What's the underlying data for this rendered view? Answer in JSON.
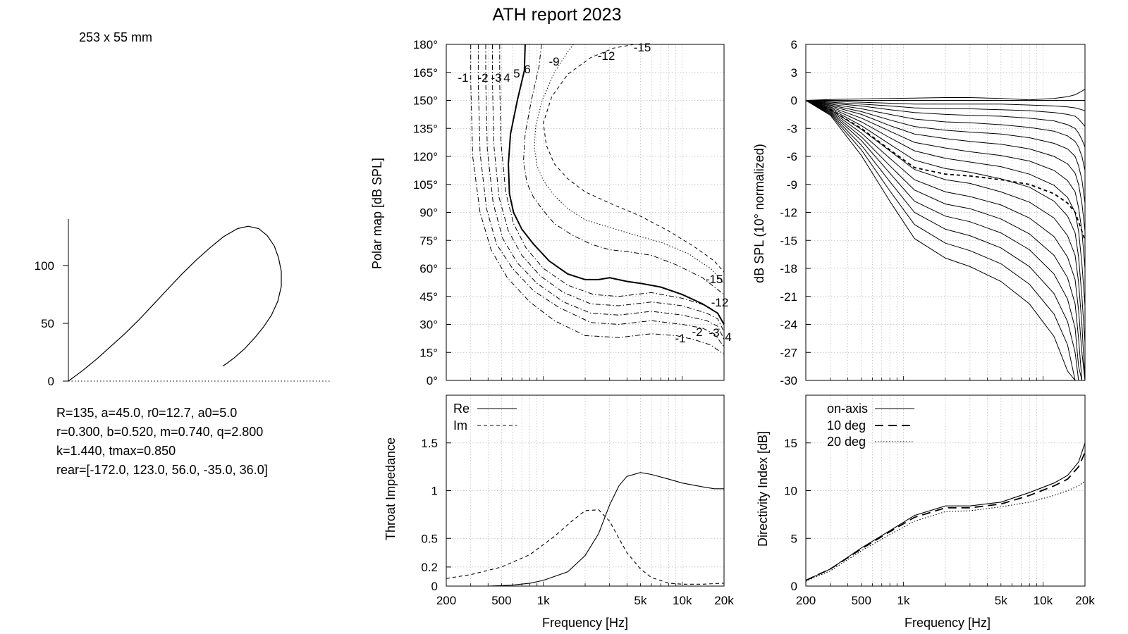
{
  "report": {
    "title": "ATH report 2023",
    "size_label": "253 x 55 mm",
    "params": [
      "R=135, a=45.0, r0=12.7, a0=5.0",
      "r=0.300, b=0.520, m=0.740, q=2.800",
      "k=1.440, tmax=0.850",
      "rear=[-172.0, 123.0, 56.0, -35.0, 36.0]"
    ]
  },
  "chart_data": [
    {
      "id": "profile",
      "type": "line",
      "title": "",
      "xlabel": "",
      "ylabel": "",
      "ylim": [
        0,
        135
      ],
      "y_ticks": [
        "0",
        "50",
        "100"
      ],
      "series": [
        {
          "x": [
            0,
            20,
            40,
            60,
            80,
            100,
            120,
            140,
            160,
            180,
            200,
            220,
            240,
            255,
            270,
            282,
            292,
            298,
            302,
            302,
            297,
            288,
            277,
            265,
            250,
            235,
            224,
            219
          ],
          "y": [
            0,
            9,
            19,
            30,
            41,
            53,
            66,
            79,
            92,
            104,
            115,
            125,
            132,
            134,
            132,
            126,
            117,
            107,
            95,
            82,
            69,
            57,
            47,
            38,
            28,
            20,
            15,
            13
          ]
        }
      ]
    },
    {
      "id": "polar-map",
      "type": "line",
      "xlabel": "",
      "ylabel": "Polar map [dB SPL]",
      "x_scale": "log",
      "xlim": [
        200,
        20000
      ],
      "ylim": [
        0,
        180
      ],
      "y_ticks": [
        "0°",
        "15°",
        "30°",
        "45°",
        "60°",
        "75°",
        "90°",
        "105°",
        "120°",
        "135°",
        "150°",
        "165°",
        "180°"
      ],
      "contours": [
        {
          "level": "-1",
          "style": "dashdot",
          "x": [
            300,
            300,
            310,
            350,
            420,
            550,
            800,
            1200,
            2000,
            3500,
            6000,
            9000,
            12000,
            16000,
            20000
          ],
          "y": [
            180,
            160,
            120,
            90,
            70,
            55,
            42,
            32,
            24,
            23,
            25,
            24,
            22,
            19,
            14
          ]
        },
        {
          "level": "-2",
          "style": "dashdot",
          "x": [
            340,
            340,
            350,
            390,
            460,
            600,
            850,
            1300,
            2200,
            3500,
            6000,
            10000,
            14000,
            17000,
            20000
          ],
          "y": [
            180,
            160,
            122,
            92,
            73,
            60,
            48,
            39,
            31,
            30,
            32,
            30,
            28,
            25,
            18
          ]
        },
        {
          "level": "-3",
          "style": "dashdot",
          "x": [
            385,
            385,
            395,
            435,
            510,
            650,
            900,
            1400,
            2200,
            3500,
            6000,
            10000,
            15000,
            18000,
            20000
          ],
          "y": [
            180,
            160,
            124,
            95,
            76,
            63,
            52,
            42,
            36,
            35,
            37,
            35,
            32,
            29,
            22
          ]
        },
        {
          "level": "4",
          "style": "dashdot",
          "x": [
            430,
            430,
            440,
            480,
            560,
            700,
            950,
            1400,
            2200,
            3500,
            6000,
            10000,
            15000,
            18000,
            20000
          ],
          "y": [
            180,
            160,
            126,
            98,
            80,
            67,
            56,
            47,
            41,
            40,
            42,
            40,
            36,
            33,
            26
          ]
        },
        {
          "level": "5",
          "style": "dashdot",
          "x": [
            485,
            485,
            495,
            535,
            610,
            750,
            1000,
            1500,
            2300,
            3500,
            6000,
            10000,
            15000,
            18000,
            20000
          ],
          "y": [
            180,
            160,
            128,
            101,
            84,
            71,
            60,
            51,
            46,
            45,
            47,
            44,
            40,
            36,
            30
          ]
        },
        {
          "level": "6",
          "style": "solid",
          "x": [
            740,
            730,
            650,
            580,
            560,
            570,
            610,
            700,
            850,
            1100,
            1500,
            2000,
            2500,
            3000,
            4000,
            5000,
            7000,
            10000,
            14000,
            18000,
            20000
          ],
          "y": [
            180,
            166,
            150,
            132,
            116,
            100,
            90,
            81,
            73,
            64,
            57,
            54,
            54,
            55,
            53,
            52,
            50,
            46,
            41,
            36,
            30
          ]
        },
        {
          "level": "-9",
          "style": "dashdot",
          "x": [
            970,
            930,
            820,
            740,
            720,
            760,
            850,
            1000,
            1200,
            1600,
            2200,
            3000,
            4000,
            6000,
            9000,
            14000,
            20000
          ],
          "y": [
            180,
            168,
            150,
            132,
            118,
            106,
            98,
            91,
            84,
            78,
            73,
            70,
            69,
            67,
            62,
            55,
            46
          ]
        },
        {
          "level": "-12",
          "style": "dotted",
          "x": [
            1650,
            1500,
            1200,
            980,
            880,
            860,
            900,
            1000,
            1200,
            1500,
            2000,
            3000,
            4500,
            7000,
            11000,
            16000,
            20000
          ],
          "y": [
            180,
            176,
            165,
            150,
            136,
            125,
            115,
            107,
            99,
            92,
            86,
            82,
            78,
            74,
            68,
            60,
            52
          ]
        },
        {
          "level": "-15",
          "style": "dashed",
          "x": [
            4500,
            3200,
            2200,
            1500,
            1150,
            1000,
            1050,
            1200,
            1500,
            2000,
            3000,
            5000,
            8000,
            12000,
            17000,
            20000
          ],
          "y": [
            180,
            178,
            173,
            164,
            152,
            138,
            126,
            116,
            108,
            101,
            95,
            88,
            80,
            72,
            64,
            58
          ]
        }
      ],
      "label_texts": [
        "-1",
        "-2",
        "-3",
        "4",
        "5",
        "6",
        "-9",
        "-12",
        "-15",
        "-15",
        "-12",
        "4",
        "-3",
        "-2",
        "-1"
      ]
    },
    {
      "id": "normalized-spl",
      "type": "line",
      "xlabel": "",
      "ylabel": "dB SPL (10° normalized)",
      "x_scale": "log",
      "xlim": [
        200,
        20000
      ],
      "ylim": [
        -30,
        6
      ],
      "y_ticks": [
        "-30",
        "-27",
        "-24",
        "-21",
        "-18",
        "-15",
        "-12",
        "-9",
        "-6",
        "-3",
        "0",
        "3",
        "6"
      ],
      "x": [
        200,
        300,
        500,
        800,
        1200,
        2000,
        3000,
        5000,
        8000,
        12000,
        15000,
        17000,
        18000,
        19000,
        20000
      ],
      "series": [
        {
          "name": "",
          "style": "solid",
          "values": [
            0,
            0.1,
            0.15,
            0.2,
            0.25,
            0.3,
            0.3,
            0.2,
            0.05,
            0.2,
            0.4,
            0.6,
            0.8,
            1.0,
            1.2
          ]
        },
        {
          "name": "",
          "style": "solid",
          "values": [
            0,
            0,
            0,
            0,
            0,
            0,
            0,
            0,
            0,
            0,
            0,
            0,
            0,
            0,
            0
          ]
        },
        {
          "name": "",
          "style": "solid",
          "values": [
            0,
            -0.1,
            -0.2,
            -0.3,
            -0.4,
            -0.4,
            -0.4,
            -0.4,
            -0.5,
            -0.6,
            -0.7,
            -0.8,
            -0.9,
            -1.0,
            -1.1
          ]
        },
        {
          "name": "",
          "style": "solid",
          "values": [
            0,
            -0.2,
            -0.4,
            -0.6,
            -0.8,
            -0.9,
            -0.9,
            -1.0,
            -1.1,
            -1.3,
            -1.5,
            -1.7,
            -2.0,
            -2.4,
            -2.8
          ]
        },
        {
          "name": "",
          "style": "solid",
          "values": [
            0,
            -0.3,
            -0.6,
            -1.0,
            -1.3,
            -1.5,
            -1.6,
            -1.7,
            -1.9,
            -2.2,
            -2.6,
            -3.0,
            -3.5,
            -4.2,
            -5.0
          ]
        },
        {
          "name": "",
          "style": "solid",
          "values": [
            0,
            -0.4,
            -0.9,
            -1.5,
            -2.0,
            -2.3,
            -2.4,
            -2.6,
            -2.9,
            -3.3,
            -3.8,
            -4.4,
            -5.0,
            -6.0,
            -7.5
          ]
        },
        {
          "name": "",
          "style": "solid",
          "values": [
            0,
            -0.5,
            -1.2,
            -2.1,
            -2.8,
            -3.2,
            -3.4,
            -3.6,
            -4.0,
            -4.6,
            -5.2,
            -6.0,
            -7.0,
            -8.5,
            -11.0
          ]
        },
        {
          "name": "",
          "style": "solid",
          "values": [
            0,
            -0.6,
            -1.5,
            -2.7,
            -3.6,
            -4.1,
            -4.4,
            -4.7,
            -5.2,
            -6.0,
            -6.8,
            -7.8,
            -9.0,
            -11.0,
            -14.0
          ]
        },
        {
          "name": "",
          "style": "solid",
          "values": [
            0,
            -0.7,
            -1.9,
            -3.3,
            -4.5,
            -5.1,
            -5.5,
            -5.9,
            -6.5,
            -7.5,
            -8.6,
            -9.8,
            -11.5,
            -14.0,
            -18.0
          ]
        },
        {
          "name": "",
          "style": "solid",
          "values": [
            0,
            -0.8,
            -2.3,
            -4.0,
            -5.4,
            -6.2,
            -6.6,
            -7.1,
            -7.9,
            -9.1,
            -10.4,
            -12.0,
            -14.0,
            -17.5,
            -22.0
          ]
        },
        {
          "name": "",
          "style": "solid",
          "values": [
            0,
            -0.9,
            -2.7,
            -4.7,
            -6.4,
            -7.3,
            -7.7,
            -8.4,
            -9.3,
            -10.8,
            -12.4,
            -14.2,
            -16.8,
            -21.0,
            -26.0
          ]
        },
        {
          "name": "",
          "style": "dashed",
          "values": [
            0,
            -1.0,
            -3.0,
            -5.3,
            -7.2,
            -7.9,
            -8.1,
            -8.5,
            -9.0,
            -10.0,
            -11.0,
            -12.0,
            -13.0,
            -14.0,
            -15.0
          ]
        },
        {
          "name": "",
          "style": "solid",
          "values": [
            0,
            -1.0,
            -3.1,
            -5.4,
            -7.4,
            -8.5,
            -8.9,
            -9.8,
            -10.9,
            -12.6,
            -14.5,
            -16.6,
            -19.5,
            -24.0,
            -30.0
          ]
        },
        {
          "name": "",
          "style": "solid",
          "values": [
            0,
            -1.1,
            -3.5,
            -6.2,
            -8.5,
            -9.8,
            -10.3,
            -11.2,
            -12.6,
            -14.6,
            -16.8,
            -19.2,
            -22.5,
            -27.0,
            -30.0
          ]
        },
        {
          "name": "",
          "style": "solid",
          "values": [
            0,
            -1.2,
            -3.9,
            -7.0,
            -9.6,
            -11.1,
            -11.6,
            -12.7,
            -14.3,
            -16.6,
            -19.0,
            -21.8,
            -25.5,
            -30.0,
            -30.0
          ]
        },
        {
          "name": "",
          "style": "solid",
          "values": [
            0,
            -1.3,
            -4.3,
            -7.8,
            -10.8,
            -12.4,
            -13.0,
            -14.2,
            -16.0,
            -18.6,
            -21.3,
            -24.4,
            -28.5,
            -30.0,
            -30.0
          ]
        },
        {
          "name": "",
          "style": "solid",
          "values": [
            0,
            -1.4,
            -4.8,
            -8.7,
            -12.0,
            -13.8,
            -14.5,
            -15.8,
            -17.8,
            -20.7,
            -23.7,
            -27.0,
            -30.0,
            -30.0,
            -30.0
          ]
        },
        {
          "name": "",
          "style": "solid",
          "values": [
            0,
            -1.5,
            -5.3,
            -9.7,
            -13.3,
            -15.3,
            -16.1,
            -17.5,
            -19.7,
            -22.9,
            -26.2,
            -30.0,
            -30.0,
            -30.0,
            -30.0
          ]
        },
        {
          "name": "",
          "style": "solid",
          "values": [
            0,
            -1.6,
            -5.9,
            -10.8,
            -14.8,
            -16.9,
            -17.8,
            -19.4,
            -21.8,
            -25.3,
            -29.0,
            -30.0,
            -30.0,
            -30.0,
            -30.0
          ]
        }
      ]
    },
    {
      "id": "throat-impedance",
      "type": "line",
      "xlabel": "Frequency [Hz]",
      "ylabel": "Throat Impedance",
      "x_scale": "log",
      "xlim": [
        200,
        20000
      ],
      "ylim": [
        0,
        2
      ],
      "y_ticks": [
        "0",
        "0.2",
        "0.5",
        "1",
        "1.5"
      ],
      "x_ticks": [
        "200",
        "500",
        "1k",
        "5k",
        "10k",
        "20k"
      ],
      "series": [
        {
          "name": "Re",
          "style": "solid",
          "x": [
            200,
            400,
            600,
            800,
            1000,
            1500,
            2000,
            2500,
            3000,
            3500,
            4000,
            5000,
            6000,
            8000,
            10000,
            14000,
            17000,
            20000
          ],
          "y": [
            0,
            0,
            0.01,
            0.03,
            0.06,
            0.15,
            0.32,
            0.55,
            0.85,
            1.05,
            1.15,
            1.19,
            1.17,
            1.12,
            1.08,
            1.04,
            1.02,
            1.02
          ]
        },
        {
          "name": "Im",
          "style": "dashed",
          "x": [
            200,
            300,
            500,
            800,
            1200,
            1600,
            2000,
            2500,
            3000,
            3500,
            4000,
            5000,
            6000,
            8000,
            10000,
            14000,
            20000
          ],
          "y": [
            0.08,
            0.12,
            0.2,
            0.33,
            0.52,
            0.68,
            0.79,
            0.8,
            0.68,
            0.5,
            0.35,
            0.18,
            0.09,
            0.03,
            0.02,
            0.02,
            0.03
          ]
        }
      ]
    },
    {
      "id": "directivity-index",
      "type": "line",
      "xlabel": "Frequency [Hz]",
      "ylabel": "Directivity Index [dB]",
      "x_scale": "log",
      "xlim": [
        200,
        20000
      ],
      "ylim": [
        0,
        20
      ],
      "y_ticks": [
        "0",
        "5",
        "10",
        "15"
      ],
      "x_ticks": [
        "200",
        "500",
        "1k",
        "5k",
        "10k",
        "20k"
      ],
      "x": [
        200,
        300,
        500,
        800,
        1200,
        2000,
        3000,
        5000,
        8000,
        12000,
        15000,
        18000,
        20000
      ],
      "series": [
        {
          "name": "on-axis",
          "style": "solid",
          "values": [
            0.6,
            1.8,
            4.0,
            5.8,
            7.4,
            8.4,
            8.4,
            8.8,
            9.8,
            10.8,
            11.6,
            13.0,
            15.0
          ]
        },
        {
          "name": "10 deg",
          "style": "longdash",
          "values": [
            0.6,
            1.8,
            3.9,
            5.7,
            7.2,
            8.2,
            8.2,
            8.6,
            9.5,
            10.5,
            11.2,
            12.5,
            14.0
          ]
        },
        {
          "name": "20 deg",
          "style": "dotted",
          "values": [
            0.5,
            1.6,
            3.7,
            5.4,
            6.8,
            7.8,
            7.9,
            8.3,
            8.8,
            9.5,
            10.0,
            10.5,
            11.0
          ]
        }
      ]
    }
  ]
}
